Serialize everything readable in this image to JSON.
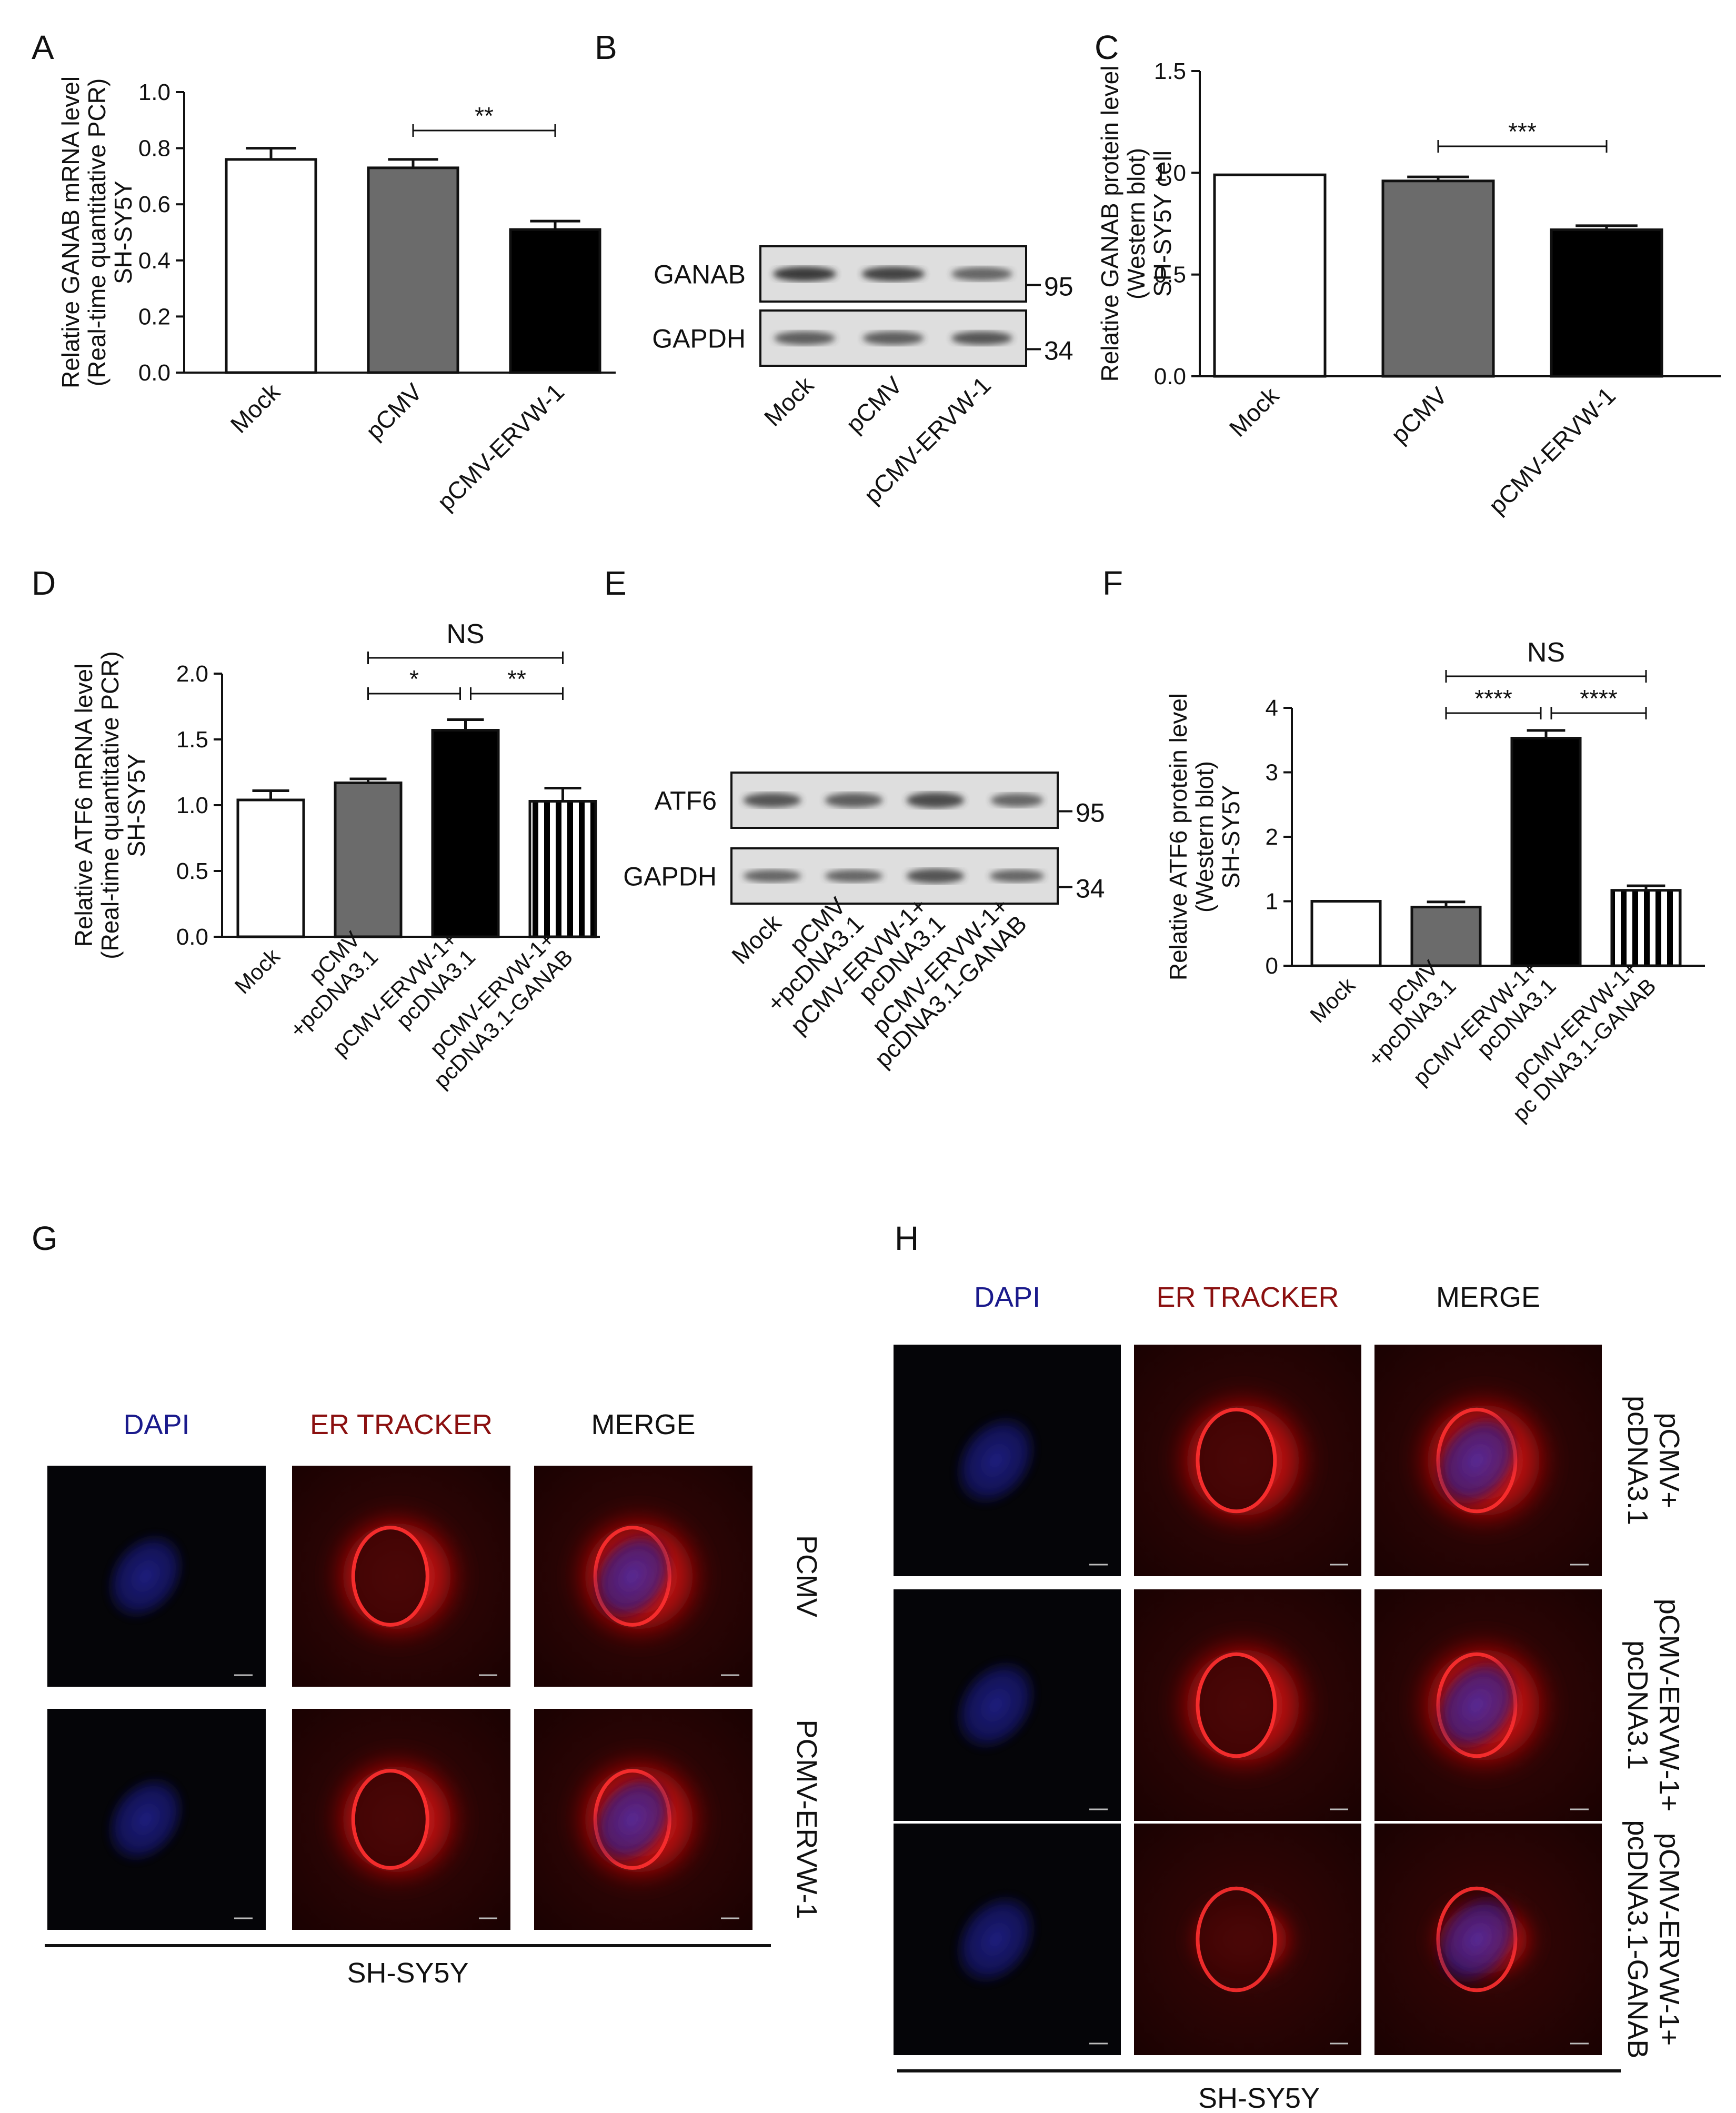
{
  "panels": {
    "A": "A",
    "B": "B",
    "C": "C",
    "D": "D",
    "E": "E",
    "F": "F",
    "G": "G",
    "H": "H"
  },
  "chart_data": [
    {
      "panel": "A",
      "type": "bar",
      "categories": [
        "Mock",
        "pCMV",
        "pCMV-ERVW-1"
      ],
      "values": [
        0.76,
        0.73,
        0.51
      ],
      "errors": [
        0.04,
        0.03,
        0.03
      ],
      "ylim": [
        0,
        1.0
      ],
      "yticks": [
        "0.0",
        "0.2",
        "0.4",
        "0.6",
        "0.8",
        "1.0"
      ],
      "ylabel_lines": [
        "Relative GANAB mRNA level",
        "(Real-time quantitative PCR)",
        "SH-SY5Y"
      ],
      "significance": [
        {
          "from": 1,
          "to": 2,
          "label": "**"
        }
      ],
      "fills": [
        "#ffffff",
        "#6b6b6b",
        "#000000"
      ]
    },
    {
      "panel": "C",
      "type": "bar",
      "categories": [
        "Mock",
        "pCMV",
        "pCMV-ERVW-1"
      ],
      "values": [
        0.99,
        0.96,
        0.72
      ],
      "errors": [
        0.0,
        0.02,
        0.02
      ],
      "ylim": [
        0,
        1.5
      ],
      "yticks": [
        "0.0",
        "0.5",
        "1.0",
        "1.5"
      ],
      "ylabel_lines": [
        "Relative GANAB protein level",
        "(Western blot)",
        "SH-SY5Y cell"
      ],
      "significance": [
        {
          "from": 1,
          "to": 2,
          "label": "***"
        }
      ],
      "fills": [
        "#ffffff",
        "#6b6b6b",
        "#000000"
      ]
    },
    {
      "panel": "D",
      "type": "bar",
      "categories": [
        "Mock",
        "pCMV\n+pcDNA3.1",
        "pCMV-ERVW-1+\npcDNA3.1",
        "pCMV-ERVW-1+\npcDNA3.1-GANAB"
      ],
      "values": [
        1.04,
        1.17,
        1.57,
        1.03
      ],
      "errors": [
        0.07,
        0.03,
        0.08,
        0.1
      ],
      "ylim": [
        0,
        2.0
      ],
      "yticks": [
        "0.0",
        "0.5",
        "1.0",
        "1.5",
        "2.0"
      ],
      "ylabel_lines": [
        "Relative ATF6 mRNA level",
        "(Real-time quantitative PCR)",
        "SH-SY5Y"
      ],
      "significance": [
        {
          "from": 1,
          "to": 3,
          "label": "NS",
          "level": 2
        },
        {
          "from": 1,
          "to": 2,
          "label": "*",
          "level": 1
        },
        {
          "from": 2,
          "to": 3,
          "label": "**",
          "level": 1
        }
      ],
      "fills": [
        "#ffffff",
        "#6b6b6b",
        "#000000",
        "stripes"
      ]
    },
    {
      "panel": "F",
      "type": "bar",
      "categories": [
        "Mock",
        "pCMV\n+pcDNA3.1",
        "pCMV-ERVW-1+\npcDNA3.1",
        "pCMV-ERVW-1+\npc DNA3.1-GANAB"
      ],
      "values": [
        1.0,
        0.91,
        3.53,
        1.17
      ],
      "errors": [
        0.0,
        0.08,
        0.12,
        0.07
      ],
      "ylim": [
        0,
        4
      ],
      "yticks": [
        "0",
        "1",
        "2",
        "3",
        "4"
      ],
      "ylabel_lines": [
        "Relative ATF6 protein level",
        "(Western blot)",
        "SH-SY5Y"
      ],
      "significance": [
        {
          "from": 1,
          "to": 3,
          "label": "NS",
          "level": 2
        },
        {
          "from": 1,
          "to": 2,
          "label": "****",
          "level": 1
        },
        {
          "from": 2,
          "to": 3,
          "label": "****",
          "level": 1
        }
      ],
      "fills": [
        "#ffffff",
        "#6b6b6b",
        "#000000",
        "stripes"
      ]
    }
  ],
  "blotB": {
    "rows": [
      "GANAB",
      "GAPDH"
    ],
    "markers": [
      "95",
      "34"
    ],
    "lanes": [
      "Mock",
      "pCMV",
      "pCMV-ERVW-1"
    ]
  },
  "blotE": {
    "rows": [
      "ATF6",
      "GAPDH"
    ],
    "markers": [
      "95",
      "34"
    ],
    "lanes": [
      "Mock",
      "pCMV\n+pcDNA3.1",
      "pCMV-ERVW-1+\npcDNA3.1",
      "pCMV-ERVW-1+\npcDNA3.1-GANAB"
    ]
  },
  "imagingG": {
    "channels": [
      "DAPI",
      "ER TRACKER",
      "MERGE"
    ],
    "channel_colors": [
      "#1a1a8c",
      "#8b1010",
      "#111111"
    ],
    "rows": [
      "PCMV",
      "PCMV-ERVW-1"
    ],
    "cell_line": "SH-SY5Y"
  },
  "imagingH": {
    "channels": [
      "DAPI",
      "ER TRACKER",
      "MERGE"
    ],
    "channel_colors": [
      "#1a1a8c",
      "#8b1010",
      "#111111"
    ],
    "rows": [
      "pCMV+\npcDNA3.1",
      "pCMV-ERVW-1+\npcDNA3.1",
      "pCMV-ERVW-1+\npcDNA3.1-GANAB"
    ],
    "cell_line": "SH-SY5Y"
  }
}
